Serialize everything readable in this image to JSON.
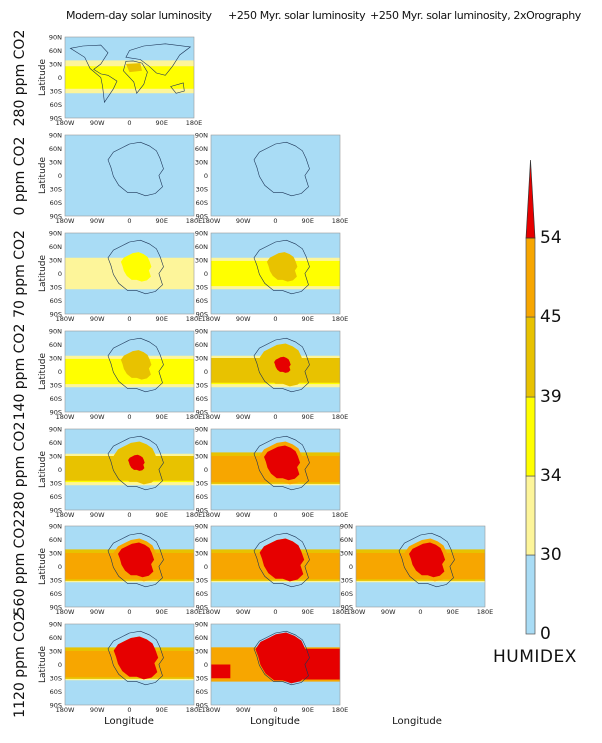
{
  "columns": [
    "Modern-day solar luminosity",
    "+250 Myr. solar luminosity",
    "+250 Myr. solar luminosity, 2xOrography"
  ],
  "rows": [
    "280 ppm CO2",
    "0 ppm CO2",
    "70 ppm CO2",
    "140 ppm CO2",
    "280 ppm CO2",
    "560 ppm CO2",
    "1120 ppm CO2"
  ],
  "axes": {
    "ylabel": "Latitude",
    "xlabel": "Longitude",
    "lat_ticks": [
      "90N",
      "60N",
      "30N",
      "0",
      "30S",
      "60S",
      "90S"
    ],
    "lon_ticks": [
      "180W",
      "90W",
      "0",
      "90E",
      "180E"
    ]
  },
  "colorbar": {
    "title": "HUMIDEX",
    "ticks": [
      "0",
      "30",
      "34",
      "39",
      "45",
      "54"
    ],
    "bounds": [
      0,
      30,
      34,
      39,
      45,
      54
    ],
    "colors": [
      "#a9dcf5",
      "#fdf59a",
      "#ffff00",
      "#e8c200",
      "#f7a600",
      "#e60000"
    ],
    "extend": "max"
  }
}
